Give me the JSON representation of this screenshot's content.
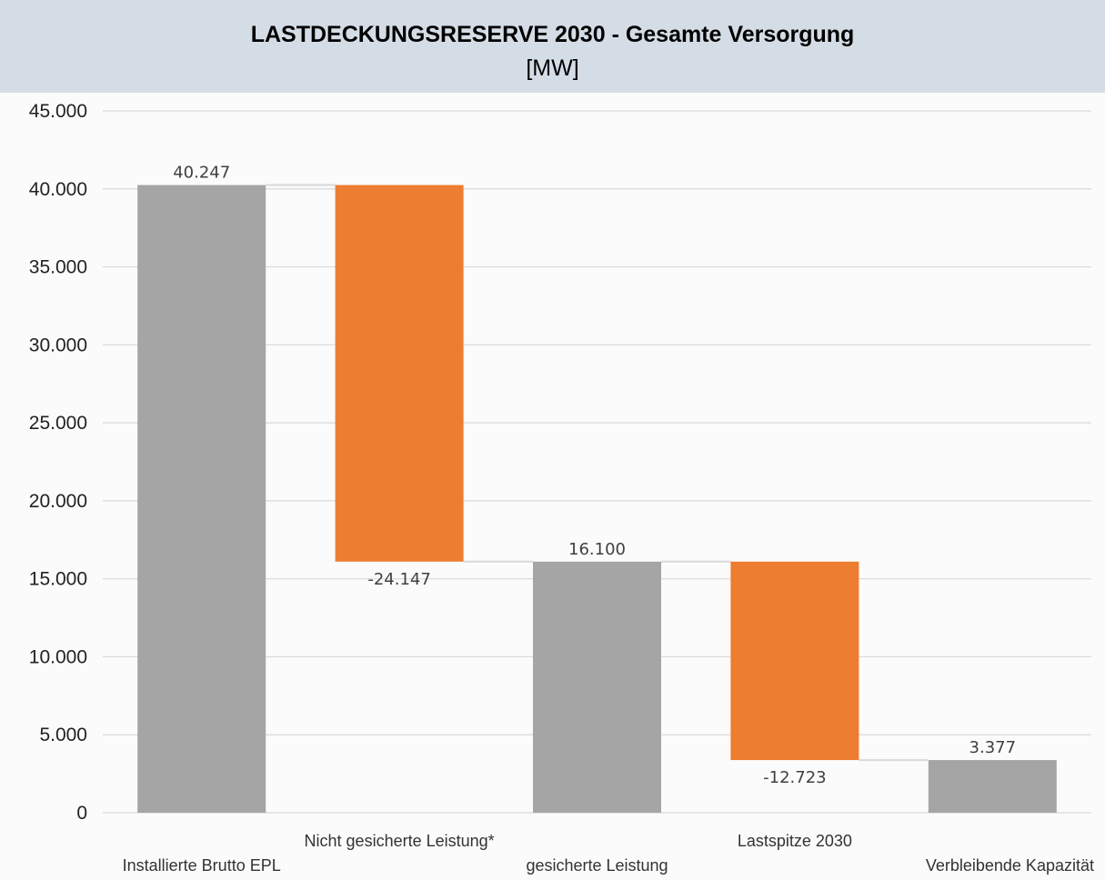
{
  "title": "LASTDECKUNGSRESERVE 2030 - Gesamte Versorgung",
  "subtitle": "[MW]",
  "colors": {
    "total": "#a5a5a5",
    "decrease": "#ed7d31",
    "grid": "#d9d9d9",
    "connector": "#d9d9d9",
    "title_band": "#d4dce6"
  },
  "chart_data": {
    "type": "bar",
    "subtype": "waterfall",
    "title": "LASTDECKUNGSRESERVE 2030 - Gesamte Versorgung",
    "subtitle": "[MW]",
    "ylim": [
      0,
      45000
    ],
    "yticks": [
      0,
      5000,
      10000,
      15000,
      20000,
      25000,
      30000,
      35000,
      40000,
      45000
    ],
    "ytick_labels": [
      "0",
      "5.000",
      "10.000",
      "15.000",
      "20.000",
      "25.000",
      "30.000",
      "35.000",
      "40.000",
      "45.000"
    ],
    "grid": true,
    "legend": "none",
    "categories": [
      "Installierte Brutto EPL",
      "Nicht gesicherte Leistung*",
      "gesicherte Leistung",
      "Lastspitze 2030",
      "Verbleibende Kapazität"
    ],
    "values": [
      40247,
      -24147,
      16100,
      -12723,
      3377
    ],
    "kinds": [
      "total",
      "decrease",
      "total",
      "decrease",
      "total"
    ],
    "data_labels": [
      "40.247",
      "-24.147",
      "16.100",
      "-12.723",
      "3.377"
    ]
  }
}
